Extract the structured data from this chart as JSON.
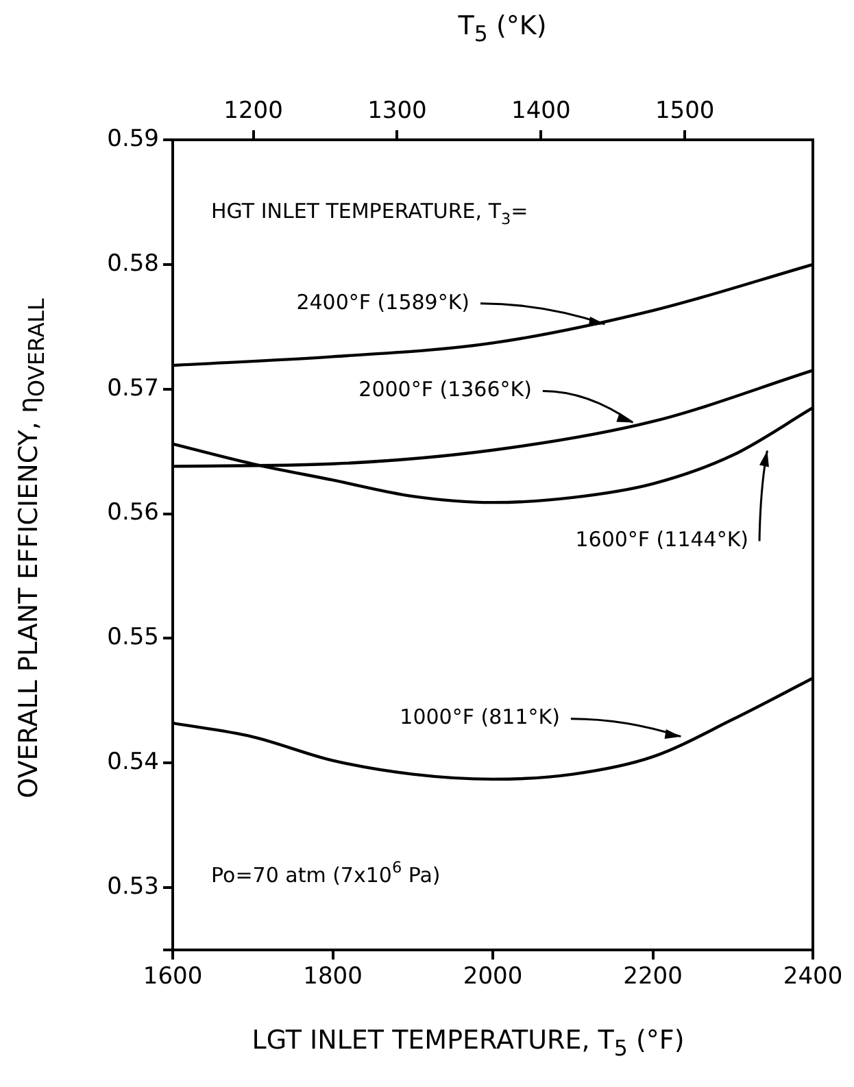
{
  "chart_data": {
    "type": "line",
    "xlabel": "LGT INLET TEMPERATURE, T$_{5}$ (°F)",
    "ylabel": "OVERALL PLANT EFFICIENCY, η$_{OVERALL}$",
    "x2label": "T$_{5}$ (°K)",
    "xlim": [
      1600,
      2400
    ],
    "xticks": [
      1600,
      1800,
      2000,
      2200,
      2400
    ],
    "x2lim": [
      1144,
      1589
    ],
    "x2ticks": [
      1200,
      1300,
      1400,
      1500
    ],
    "ylim": [
      0.525,
      0.59
    ],
    "yticks": [
      {
        "value": 0.525,
        "label": null
      },
      0.53,
      0.54,
      0.55,
      0.56,
      0.57,
      0.58,
      0.59
    ],
    "grid": false,
    "legend": false,
    "marker": "none",
    "line_style": "solid",
    "series": [
      {
        "color": "#000000",
        "x": [
          1600,
          1800,
          2000,
          2200,
          2400
        ],
        "values": [
          0.5719,
          0.5726,
          0.5737,
          0.5763,
          0.58
        ]
      },
      {
        "color": "#000000",
        "x": [
          1600,
          1800,
          2000,
          2200,
          2400
        ],
        "values": [
          0.5638,
          0.564,
          0.5651,
          0.5674,
          0.5715
        ]
      },
      {
        "color": "#000000",
        "x": [
          1600,
          1700,
          1800,
          1900,
          2000,
          2100,
          2200,
          2300,
          2400
        ],
        "values": [
          0.5656,
          0.564,
          0.5627,
          0.5614,
          0.5609,
          0.5613,
          0.5624,
          0.5647,
          0.5685
        ]
      },
      {
        "color": "#000000",
        "x": [
          1600,
          1700,
          1800,
          1900,
          2000,
          2100,
          2200,
          2300,
          2400
        ],
        "values": [
          0.5432,
          0.5421,
          0.5402,
          0.5391,
          0.5387,
          0.5391,
          0.5405,
          0.5435,
          0.5468
        ]
      }
    ],
    "annotations": [
      "HGT INLET TEMPERATURE, T$_{3}$=",
      {
        "text": "2400°F (1589°K)",
        "x": 2140,
        "y": 0.575
      },
      {
        "text": "2000°F (1366°K)",
        "x": 2175,
        "y": 0.5671
      },
      {
        "text": "1600°F (1144°K)",
        "x": 2343,
        "y": 0.5655
      },
      {
        "text": "1000°F (811°K)",
        "x": 2235,
        "y": 0.5419
      },
      "Po=70 atm (7x10$^{6}$ Pa)"
    ]
  }
}
